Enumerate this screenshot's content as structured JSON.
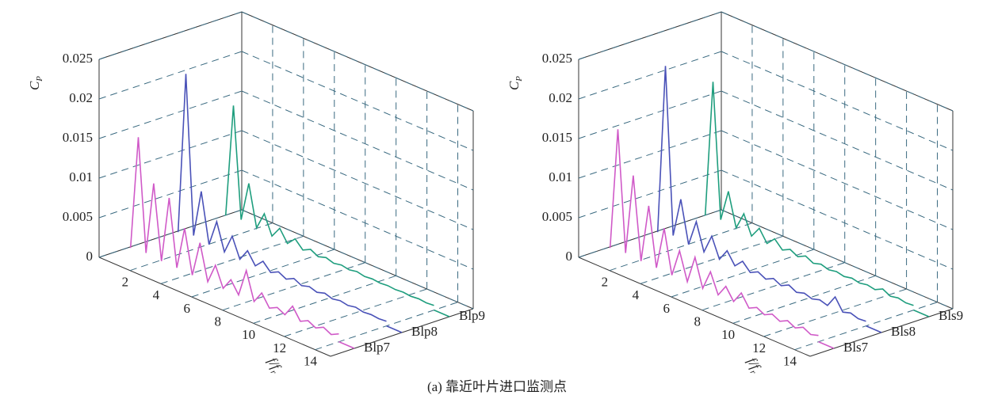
{
  "chart_data": [
    {
      "type": "waterfall",
      "ylabel": "C",
      "ylabel_subscript": "P",
      "xlabel": "f/f",
      "xlabel_subscript": "r",
      "xlim": [
        0,
        15
      ],
      "xticks": [
        2,
        4,
        6,
        8,
        10,
        12,
        14
      ],
      "ylim": [
        0,
        0.025
      ],
      "yticks": [
        0,
        0.005,
        0.01,
        0.015,
        0.02,
        0.025
      ],
      "grid": true,
      "x": [
        0.5,
        1,
        1.5,
        2,
        2.5,
        3,
        3.5,
        4,
        4.5,
        5,
        5.5,
        6,
        6.5,
        7,
        7.5,
        8,
        8.5,
        9,
        9.5,
        10,
        10.5,
        11,
        11.5,
        12,
        12.5,
        13,
        13.5,
        14
      ],
      "series": [
        {
          "name": "Blp7",
          "color": "#d05ac8",
          "values": [
            0.0006,
            0.015,
            0.0008,
            0.01,
            0.0006,
            0.009,
            0.0006,
            0.006,
            0.0005,
            0.005,
            0.0005,
            0.003,
            0.0005,
            0.002,
            0.0005,
            0.004,
            0.0005,
            0.002,
            0.0005,
            0.001,
            0.0005,
            0.002,
            0.0005,
            0.001,
            0.0005,
            0.001,
            0.0005,
            0.001
          ]
        },
        {
          "name": "Blp8",
          "color": "#4a52b8",
          "values": [
            0.0006,
            0.021,
            0.001,
            0.007,
            0.0007,
            0.004,
            0.0006,
            0.003,
            0.0005,
            0.002,
            0.0005,
            0.0015,
            0.0005,
            0.001,
            0.0005,
            0.001,
            0.0005,
            0.0008,
            0.0005,
            0.0008,
            0.0005,
            0.0007,
            0.0005,
            0.0007,
            0.0005,
            0.0006,
            0.0005,
            0.0006
          ]
        },
        {
          "name": "Blp9",
          "color": "#1f9e7e",
          "values": [
            0.0007,
            0.015,
            0.001,
            0.006,
            0.0008,
            0.003,
            0.0006,
            0.002,
            0.0005,
            0.0015,
            0.0005,
            0.001,
            0.0005,
            0.0008,
            0.0005,
            0.0007,
            0.0005,
            0.0007,
            0.0005,
            0.0006,
            0.0005,
            0.0006,
            0.0005,
            0.0006,
            0.0005,
            0.0006,
            0.0005,
            0.0006
          ]
        }
      ]
    },
    {
      "type": "waterfall",
      "ylabel": "C",
      "ylabel_subscript": "P",
      "xlabel": "f/f",
      "xlabel_subscript": "r",
      "xlim": [
        0,
        15
      ],
      "xticks": [
        2,
        4,
        6,
        8,
        10,
        12,
        14
      ],
      "ylim": [
        0,
        0.025
      ],
      "yticks": [
        0,
        0.005,
        0.01,
        0.015,
        0.02,
        0.025
      ],
      "grid": true,
      "x": [
        0.5,
        1,
        1.5,
        2,
        2.5,
        3,
        3.5,
        4,
        4.5,
        5,
        5.5,
        6,
        6.5,
        7,
        7.5,
        8,
        8.5,
        9,
        9.5,
        10,
        10.5,
        11,
        11.5,
        12,
        12.5,
        13,
        13.5,
        14
      ],
      "series": [
        {
          "name": "Bls7",
          "color": "#d05ac8",
          "values": [
            0.0006,
            0.016,
            0.0008,
            0.011,
            0.0006,
            0.008,
            0.0006,
            0.006,
            0.0005,
            0.004,
            0.0005,
            0.004,
            0.0005,
            0.003,
            0.0005,
            0.002,
            0.0005,
            0.002,
            0.0005,
            0.001,
            0.0005,
            0.001,
            0.0005,
            0.001,
            0.0005,
            0.001,
            0.0005,
            0.0008
          ]
        },
        {
          "name": "Bls8",
          "color": "#4a52b8",
          "values": [
            0.0006,
            0.022,
            0.001,
            0.006,
            0.0007,
            0.004,
            0.0006,
            0.003,
            0.0005,
            0.002,
            0.0005,
            0.0015,
            0.0005,
            0.001,
            0.0005,
            0.001,
            0.0005,
            0.001,
            0.0005,
            0.0008,
            0.0005,
            0.0008,
            0.0005,
            0.002,
            0.0005,
            0.0008,
            0.0005,
            0.0006
          ]
        },
        {
          "name": "Bls9",
          "color": "#1f9e7e",
          "values": [
            0.0007,
            0.018,
            0.001,
            0.005,
            0.0008,
            0.003,
            0.0006,
            0.002,
            0.0005,
            0.0015,
            0.0005,
            0.001,
            0.0005,
            0.001,
            0.0005,
            0.0008,
            0.0005,
            0.0007,
            0.0005,
            0.0007,
            0.0005,
            0.0007,
            0.0005,
            0.001,
            0.0005,
            0.0007,
            0.0005,
            0.0006
          ]
        }
      ]
    }
  ],
  "caption": "(a) 靠近叶片进口监测点"
}
